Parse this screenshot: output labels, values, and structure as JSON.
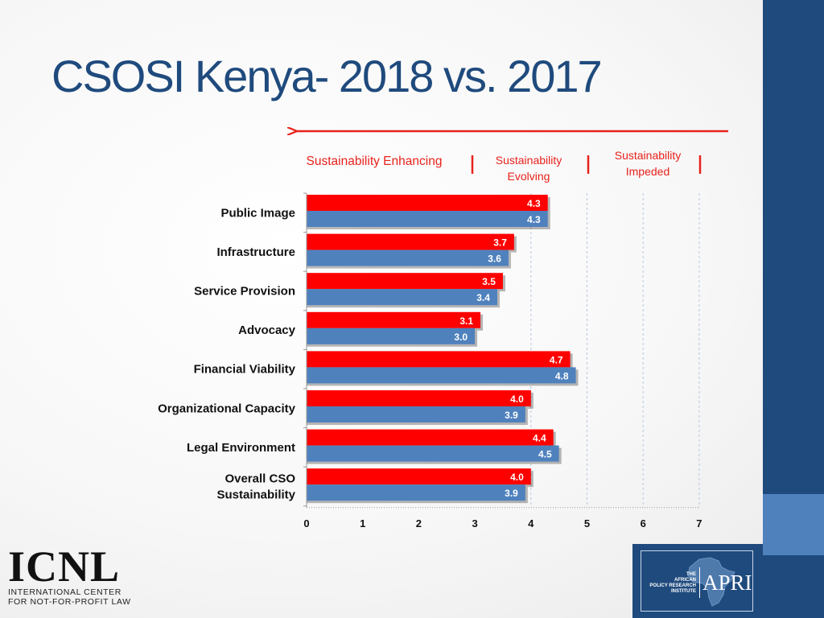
{
  "slide": {
    "title": "CSOSI Kenya- 2018 vs. 2017"
  },
  "colors": {
    "series_2018": "#ff0000",
    "series_2017": "#4f81bd",
    "arrow": "#e8221c",
    "scale_text": "#e8221c",
    "theme_dark": "#1f4a7d",
    "theme_light": "#4f81bd"
  },
  "scale_labels": {
    "enhancing": "Sustainability Enhancing",
    "evolving": [
      "Sustainability",
      "Evolving"
    ],
    "impeded": [
      "Sustainability",
      "Impeded"
    ]
  },
  "chart_data": {
    "type": "bar",
    "orientation": "horizontal",
    "categories": [
      "Public Image",
      "Infrastructure",
      "Service Provision",
      "Advocacy",
      "Financial Viability",
      "Organizational Capacity",
      "Legal Environment",
      "Overall CSO Sustainability"
    ],
    "category_lines": [
      [
        "Public Image"
      ],
      [
        "Infrastructure"
      ],
      [
        "Service Provision"
      ],
      [
        "Advocacy"
      ],
      [
        "Financial Viability"
      ],
      [
        "Organizational Capacity"
      ],
      [
        "Legal Environment"
      ],
      [
        "Overall CSO",
        "Sustainability"
      ]
    ],
    "series": [
      {
        "values": [
          4.3,
          3.7,
          3.5,
          3.1,
          4.7,
          4.0,
          4.4,
          4.0
        ],
        "labels": [
          "4.3",
          "3.7",
          "3.5",
          "3.1",
          "4.7",
          "4.0",
          "4.4",
          "4.0"
        ]
      },
      {
        "values": [
          4.3,
          3.6,
          3.4,
          3.0,
          4.8,
          3.9,
          4.5,
          3.9
        ],
        "labels": [
          "4.3",
          "3.6",
          "3.4",
          "3.0",
          "4.8",
          "3.9",
          "4.5",
          "3.9"
        ]
      }
    ],
    "x_ticks": [
      "0",
      "1",
      "2",
      "3",
      "4",
      "5",
      "6",
      "7"
    ],
    "xlim": [
      0,
      7
    ],
    "grid": "vertical dashed lines at 4, 5, 6 and 7",
    "legend": "none"
  },
  "logos": {
    "icnl": {
      "name": "ICNL",
      "line1": "INTERNATIONAL CENTER",
      "line2": "FOR NOT-FOR-PROFIT LAW"
    },
    "apri": {
      "tagline": "THE\nAFRICAN\nPOLICY RESEARCH\nINSTITUTE",
      "name": "APRI"
    }
  }
}
